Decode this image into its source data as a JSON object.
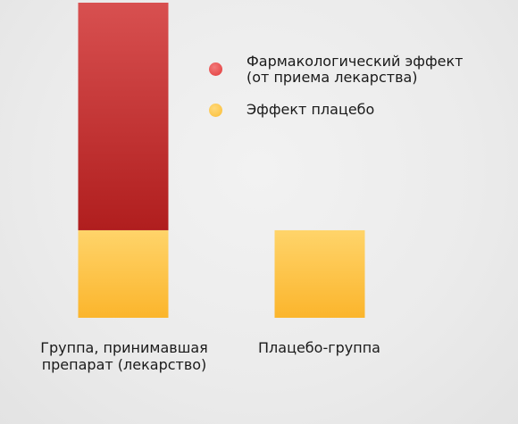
{
  "chart_data": {
    "type": "bar",
    "stacked": true,
    "categories": [
      "Группа, принимавшая препарат (лекарство)",
      "Плацебо-группа"
    ],
    "category_lines": [
      [
        "Группа, принимавшая",
        "препарат (лекарство)"
      ],
      [
        "Плацебо-группа"
      ]
    ],
    "series": [
      {
        "name": "Эффект плацебо",
        "values": [
          1,
          1
        ],
        "color": "#fbbd35"
      },
      {
        "name": "Фармакологический эффект (от приема лекарства)",
        "values": [
          2.6,
          0
        ],
        "color": "#c0262a"
      }
    ],
    "ylim": [
      0,
      3.6
    ],
    "axes_visible": false,
    "grid": false,
    "legend_position": "top-right"
  },
  "legend": [
    {
      "lines": [
        "Фармакологический эффект",
        "(от приема лекарства)"
      ],
      "color": "#e23a3a"
    },
    {
      "lines": [
        "Эффект плацебо"
      ],
      "color": "#fbbd35"
    }
  ]
}
